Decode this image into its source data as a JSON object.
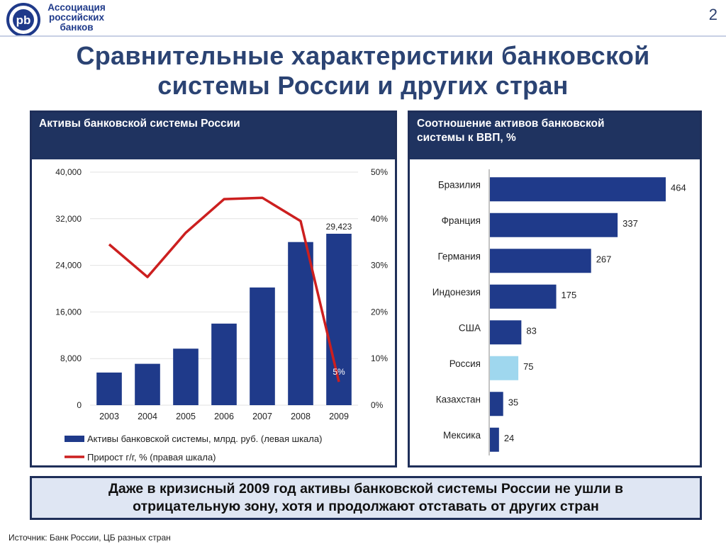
{
  "header": {
    "logo_text_lines": [
      "Ассоциация",
      "российских",
      "банков"
    ],
    "logo_mark": "pb",
    "page_number": "2"
  },
  "title_lines": [
    "Сравнительные характеристики банковской",
    "системы России и других стран"
  ],
  "left_panel": {
    "title": "Активы банковской системы России"
  },
  "right_panel": {
    "title_lines": [
      "Соотношение активов банковской",
      "системы к ВВП, %"
    ]
  },
  "callout_lines": [
    "Даже в кризисный 2009 год активы банковской системы России не ушли в",
    "отрицательную зону, хотя и продолжают отставать от других стран"
  ],
  "source": "Источник: Банк России, ЦБ разных стран",
  "colors": {
    "navy": "#1f3a8a",
    "red": "#cc1f1f",
    "highlight": "#9fd7ee",
    "panel_header": "#1f3360"
  },
  "chart_data": [
    {
      "type": "bar",
      "categories": [
        "2003",
        "2004",
        "2005",
        "2006",
        "2007",
        "2008",
        "2009"
      ],
      "series": [
        {
          "name": "Активы банковской системы, млрд. руб. (левая шкала)",
          "type": "bar",
          "axis": "left",
          "values": [
            5600,
            7100,
            9700,
            14000,
            20200,
            28000,
            29423
          ]
        },
        {
          "name": "Прирост г/г, % (правая шкала)",
          "type": "line",
          "axis": "right",
          "values": [
            34.5,
            27.5,
            37,
            44.2,
            44.5,
            39.5,
            5
          ]
        }
      ],
      "data_labels": [
        {
          "category": "2009",
          "series": 0,
          "text": "29,423"
        },
        {
          "category": "2009",
          "series": 1,
          "text": "5%"
        }
      ],
      "ylim_left": [
        0,
        40000
      ],
      "yticks_left": [
        "0",
        "8,000",
        "16,000",
        "24,000",
        "32,000",
        "40,000"
      ],
      "ylim_right": [
        0,
        50
      ],
      "yticks_right": [
        "0%",
        "10%",
        "20%",
        "30%",
        "40%",
        "50%"
      ],
      "grid": true,
      "legend": "bottom"
    },
    {
      "type": "bar",
      "orientation": "horizontal",
      "categories": [
        "Бразилия",
        "Франция",
        "Германия",
        "Индонезия",
        "США",
        "Россия",
        "Казахстан",
        "Мексика"
      ],
      "values": [
        464,
        337,
        267,
        175,
        83,
        75,
        35,
        24
      ],
      "highlight": "Россия",
      "grid": false,
      "legend": "none"
    }
  ]
}
